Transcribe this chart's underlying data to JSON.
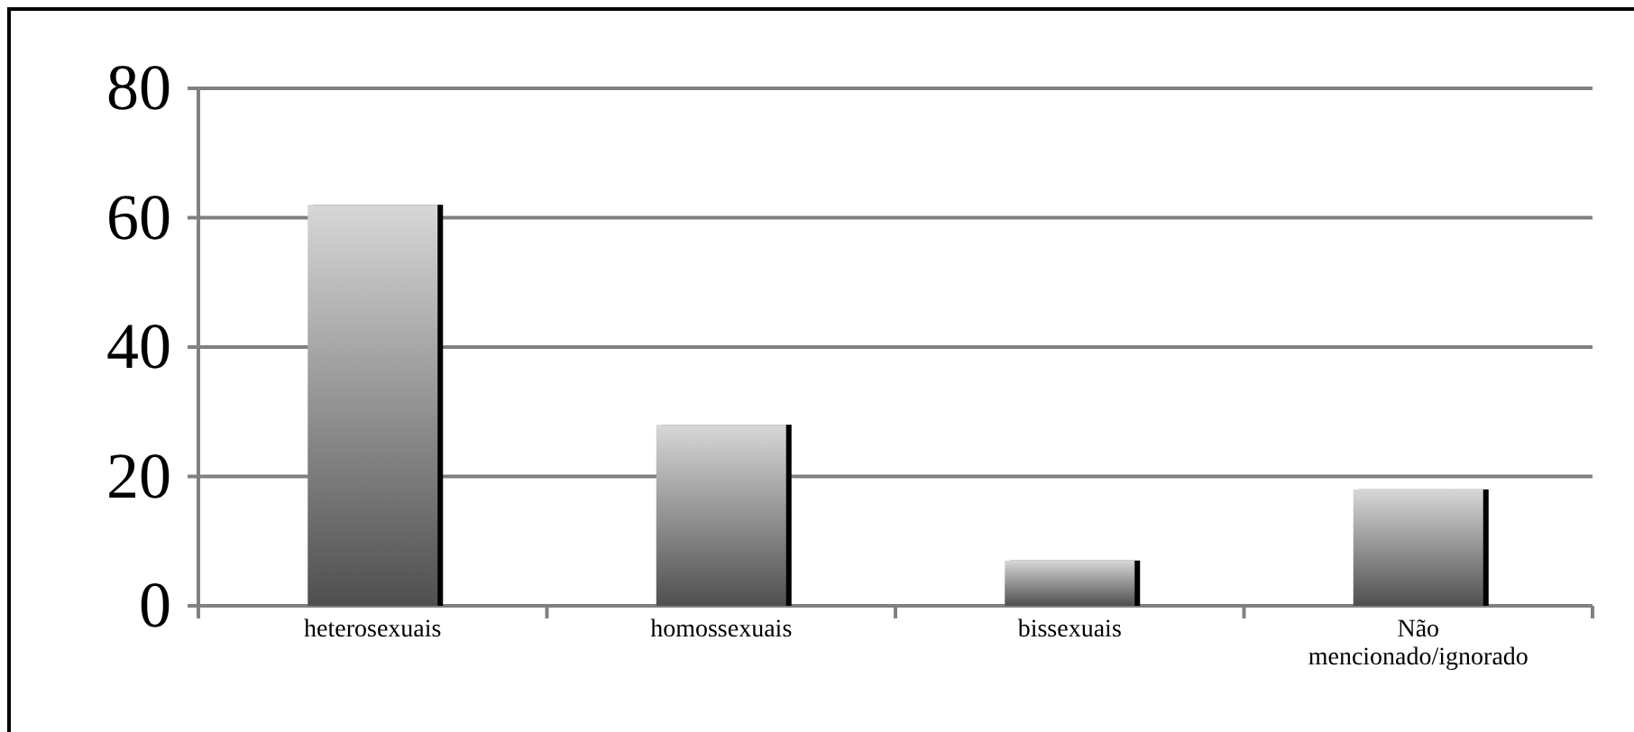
{
  "chart_data": {
    "type": "bar",
    "categories": [
      "heterosexuais",
      "homossexuais",
      "bissexuais",
      "Não mencionado/ignorado"
    ],
    "values": [
      62,
      28,
      7,
      18
    ],
    "color": "#8c8c8c",
    "ylim": [
      0,
      80
    ],
    "yticks": [
      0,
      20,
      40,
      60,
      80
    ],
    "grid": "y"
  }
}
